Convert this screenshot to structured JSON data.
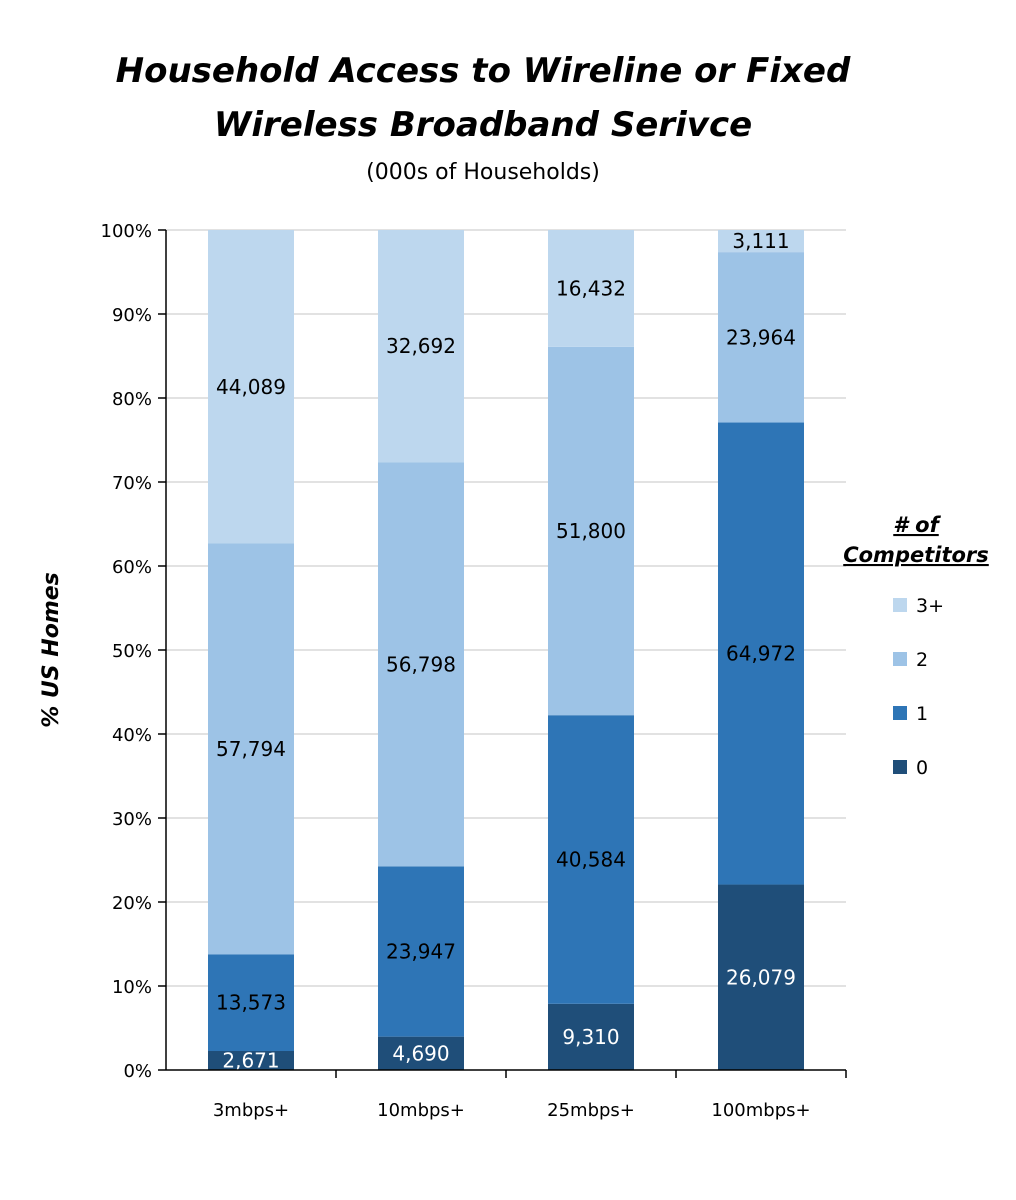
{
  "chart_data": {
    "type": "bar",
    "stacked": true,
    "normalized": true,
    "title_lines": [
      "Household Access to Wireline or Fixed",
      "Wireless Broadband Serivce"
    ],
    "subtitle": "(000s of Households)",
    "ylabel": "% US Homes",
    "xlabel": "",
    "ylim": [
      0,
      100
    ],
    "yticks": [
      "0%",
      "10%",
      "20%",
      "30%",
      "40%",
      "50%",
      "60%",
      "70%",
      "80%",
      "90%",
      "100%"
    ],
    "grid": true,
    "legend_title_lines": [
      "# of",
      "Competitors"
    ],
    "legend_position": "right",
    "categories": [
      "3mbps+",
      "10mbps+",
      "25mbps+",
      "100mbps+"
    ],
    "series": [
      {
        "name": "0",
        "color": "#1f4e79",
        "label_color": "#ffffff",
        "values": [
          2671,
          4690,
          9310,
          26079
        ],
        "labels": [
          "2,671",
          "4,690",
          "9,310",
          "26,079"
        ]
      },
      {
        "name": "1",
        "color": "#2e75b6",
        "label_color": "#000000",
        "values": [
          13573,
          23947,
          40584,
          64972
        ],
        "labels": [
          "13,573",
          "23,947",
          "40,584",
          "64,972"
        ]
      },
      {
        "name": "2",
        "color": "#9dc3e6",
        "label_color": "#000000",
        "values": [
          57794,
          56798,
          51800,
          23964
        ],
        "labels": [
          "57,794",
          "56,798",
          "51,800",
          "23,964"
        ]
      },
      {
        "name": "3+",
        "color": "#bdd7ee",
        "label_color": "#000000",
        "values": [
          44089,
          32692,
          16432,
          3111
        ],
        "labels": [
          "44,089",
          "32,692",
          "16,432",
          "3,111"
        ]
      }
    ]
  }
}
